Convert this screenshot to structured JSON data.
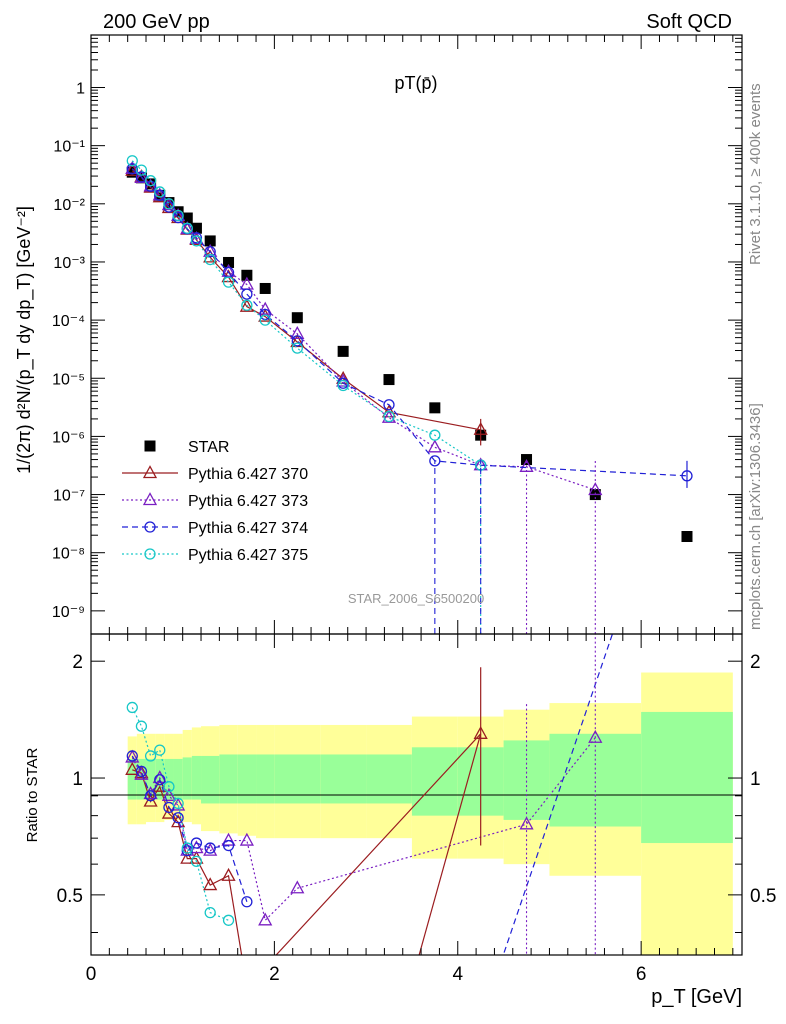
{
  "header": {
    "left": "200 GeV pp",
    "right": "Soft QCD"
  },
  "side_text": {
    "rivet": "Rivet 3.1.10, ≥ 400k events",
    "mcplots": "mcplots.cern.ch [arXiv:1306.3436]"
  },
  "chart_data": [
    {
      "type": "scatter",
      "title": "pT(p̄)",
      "watermark": "STAR_2006_S6500200",
      "ylabel": "1/(2π) d²N/(p_T dy dp_T) [GeV⁻²]",
      "xlabel": "p_T [GeV]",
      "xlim": [
        0,
        7.1
      ],
      "ylim": [
        4e-10,
        8
      ],
      "yscale": "log",
      "ytick_labels": [
        "10⁻⁹",
        "10⁻⁸",
        "10⁻⁷",
        "10⁻⁶",
        "10⁻⁵",
        "10⁻⁴",
        "10⁻³",
        "10⁻²",
        "10⁻¹",
        "1"
      ],
      "legend_position": "lower-left",
      "series": [
        {
          "name": "STAR",
          "marker": "filled-square",
          "color": "#000000",
          "x": [
            0.45,
            0.55,
            0.65,
            0.75,
            0.85,
            0.95,
            1.05,
            1.15,
            1.3,
            1.5,
            1.7,
            1.9,
            2.25,
            2.75,
            3.25,
            3.75,
            4.25,
            4.75,
            5.5,
            6.5
          ],
          "y": [
            0.035,
            0.028,
            0.022,
            0.014,
            0.0105,
            0.0073,
            0.0057,
            0.0038,
            0.0023,
            0.00098,
            0.00059,
            0.00035,
            0.00011,
            2.9e-05,
            9.5e-06,
            3.1e-06,
            1.05e-06,
            4e-07,
            1e-07,
            1.9e-08
          ]
        },
        {
          "name": "Pythia 6.427 370",
          "marker": "open-triangle",
          "line": "solid",
          "color": "#9b1d20",
          "x": [
            0.45,
            0.55,
            0.65,
            0.75,
            0.85,
            0.95,
            1.05,
            1.15,
            1.3,
            1.5,
            1.7,
            1.9,
            2.25,
            2.75,
            3.25,
            4.25
          ],
          "y": [
            0.037,
            0.029,
            0.019,
            0.013,
            0.0085,
            0.0057,
            0.0036,
            0.0024,
            0.0012,
            0.00055,
            0.00017,
            0.000115,
            4.2e-05,
            9.8e-06,
            2.6e-06,
            1.3e-06
          ]
        },
        {
          "name": "Pythia 6.427 373",
          "marker": "open-triangle",
          "line": "dotted",
          "color": "#7a1fc2",
          "x": [
            0.45,
            0.55,
            0.65,
            0.75,
            0.85,
            0.95,
            1.05,
            1.15,
            1.3,
            1.5,
            1.7,
            1.9,
            2.25,
            2.75,
            3.25,
            3.75,
            4.25,
            4.75,
            5.5
          ],
          "y": [
            0.04,
            0.028,
            0.02,
            0.014,
            0.0095,
            0.0062,
            0.0037,
            0.0025,
            0.0015,
            0.00068,
            0.00041,
            0.000152,
            5.8e-05,
            8.8e-06,
            2.1e-06,
            6.5e-07,
            3.2e-07,
            3e-07,
            1.2e-07
          ]
        },
        {
          "name": "Pythia 6.427 374",
          "marker": "open-circle",
          "line": "dashed",
          "color": "#2121d6",
          "x": [
            0.45,
            0.55,
            0.65,
            0.75,
            0.85,
            0.95,
            1.05,
            1.15,
            1.3,
            1.5,
            1.7,
            1.9,
            2.25,
            2.75,
            3.25,
            3.75,
            4.25,
            6.5
          ],
          "y": [
            0.04,
            0.029,
            0.02,
            0.014,
            0.0088,
            0.0058,
            0.0037,
            0.0026,
            0.0015,
            0.00066,
            0.00028,
            0.000125,
            4.4e-05,
            8.2e-06,
            3.5e-06,
            3.8e-07,
            3.2e-07,
            2.1e-07
          ]
        },
        {
          "name": "Pythia 6.427 375",
          "marker": "open-circle",
          "line": "dotted",
          "color": "#17c7c7",
          "x": [
            0.45,
            0.55,
            0.65,
            0.75,
            0.85,
            0.95,
            1.05,
            1.15,
            1.3,
            1.5,
            1.7,
            1.9,
            2.25,
            2.75,
            3.25,
            3.75,
            4.25
          ],
          "y": [
            0.055,
            0.038,
            0.025,
            0.016,
            0.01,
            0.0063,
            0.0038,
            0.0023,
            0.0011,
            0.00045,
            0.00018,
            0.0001,
            3.3e-05,
            7.5e-06,
            2.2e-06,
            1.05e-06,
            3.2e-07
          ]
        }
      ]
    },
    {
      "type": "line",
      "ylabel": "Ratio to STAR",
      "xlabel": "p_T [GeV]",
      "xlim": [
        0,
        7.1
      ],
      "ylim": [
        0.35,
        2.35
      ],
      "yscale": "log",
      "xticks": [
        0,
        2,
        4,
        6
      ],
      "yticks": [
        0.5,
        1,
        2
      ],
      "reference_line": 1,
      "band_edges": [
        0.4,
        0.5,
        0.6,
        0.7,
        0.8,
        0.9,
        1.0,
        1.1,
        1.2,
        1.4,
        1.6,
        1.8,
        2.0,
        2.5,
        3.0,
        3.5,
        4.0,
        4.5,
        5.0,
        6.0,
        7.0
      ],
      "band_inner_lo": [
        0.88,
        0.88,
        0.88,
        0.88,
        0.88,
        0.88,
        0.88,
        0.88,
        0.86,
        0.86,
        0.86,
        0.86,
        0.86,
        0.86,
        0.86,
        0.8,
        0.8,
        0.78,
        0.75,
        0.68
      ],
      "band_inner_hi": [
        1.12,
        1.12,
        1.12,
        1.12,
        1.12,
        1.12,
        1.13,
        1.14,
        1.14,
        1.15,
        1.15,
        1.15,
        1.15,
        1.15,
        1.15,
        1.2,
        1.2,
        1.25,
        1.3,
        1.48
      ],
      "band_outer_lo": [
        0.76,
        0.76,
        0.77,
        0.77,
        0.78,
        0.78,
        0.77,
        0.76,
        0.73,
        0.72,
        0.71,
        0.7,
        0.7,
        0.7,
        0.7,
        0.62,
        0.62,
        0.6,
        0.56,
        0.35
      ],
      "band_outer_hi": [
        1.28,
        1.3,
        1.3,
        1.3,
        1.3,
        1.3,
        1.33,
        1.35,
        1.36,
        1.37,
        1.37,
        1.37,
        1.37,
        1.37,
        1.37,
        1.44,
        1.44,
        1.5,
        1.56,
        1.87
      ],
      "series": [
        {
          "name": "Pythia 6.427 370",
          "color": "#9b1d20",
          "line": "solid",
          "marker": "open-triangle",
          "x": [
            0.45,
            0.55,
            0.65,
            0.75,
            0.85,
            0.95,
            1.05,
            1.15,
            1.3,
            1.5,
            1.7,
            4.25
          ],
          "y": [
            1.05,
            1.03,
            0.87,
            0.95,
            0.81,
            0.77,
            0.62,
            0.62,
            0.53,
            0.56,
            0.29,
            1.3
          ]
        },
        {
          "name": "Pythia 6.427 373",
          "color": "#7a1fc2",
          "line": "dotted",
          "marker": "open-triangle",
          "x": [
            0.45,
            0.55,
            0.65,
            0.75,
            0.85,
            0.95,
            1.05,
            1.15,
            1.3,
            1.5,
            1.7,
            1.9,
            2.25,
            4.75,
            5.5
          ],
          "y": [
            1.13,
            1.02,
            0.91,
            1.0,
            0.9,
            0.85,
            0.65,
            0.66,
            0.65,
            0.69,
            0.69,
            0.43,
            0.52,
            0.76,
            1.27
          ]
        },
        {
          "name": "Pythia 6.427 374",
          "color": "#2121d6",
          "line": "dashed",
          "marker": "open-circle",
          "x": [
            0.45,
            0.55,
            0.65,
            0.75,
            0.85,
            0.95,
            1.05,
            1.15,
            1.3,
            1.5,
            1.7
          ],
          "y": [
            1.14,
            1.04,
            0.9,
            0.99,
            0.84,
            0.79,
            0.65,
            0.68,
            0.66,
            0.67,
            0.48
          ]
        },
        {
          "name": "Pythia 6.427 375",
          "color": "#17c7c7",
          "line": "dotted",
          "marker": "open-circle",
          "x": [
            0.45,
            0.55,
            0.65,
            0.75,
            0.85,
            0.95,
            1.05,
            1.15,
            1.3,
            1.5
          ],
          "y": [
            1.52,
            1.36,
            1.14,
            1.18,
            0.95,
            0.86,
            0.66,
            0.61,
            0.45,
            0.43
          ]
        }
      ]
    }
  ]
}
